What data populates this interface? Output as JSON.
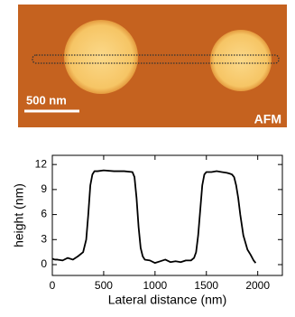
{
  "image": {
    "scale_label": "500 nm",
    "label": "AFM"
  },
  "chart_data": {
    "type": "line",
    "x": [
      0,
      25,
      50,
      100,
      150,
      200,
      250,
      300,
      330,
      350,
      370,
      390,
      410,
      440,
      500,
      600,
      700,
      780,
      800,
      820,
      840,
      860,
      880,
      900,
      950,
      1000,
      1050,
      1100,
      1150,
      1200,
      1250,
      1300,
      1350,
      1380,
      1400,
      1420,
      1440,
      1460,
      1480,
      1500,
      1550,
      1600,
      1650,
      1700,
      1730,
      1750,
      1770,
      1790,
      1810,
      1830,
      1860,
      1900,
      1930,
      1960,
      1980
    ],
    "values": [
      0.7,
      0.6,
      0.6,
      0.5,
      0.8,
      0.6,
      1.0,
      1.5,
      3,
      6,
      9.5,
      10.8,
      11.2,
      11.2,
      11.3,
      11.2,
      11.2,
      11.1,
      10.5,
      8,
      4.5,
      2,
      1,
      0.6,
      0.5,
      0.2,
      0.4,
      0.6,
      0.3,
      0.4,
      0.3,
      0.5,
      0.5,
      0.8,
      1.5,
      3.5,
      6.5,
      9.5,
      10.8,
      11.1,
      11.1,
      11.2,
      11.1,
      11.0,
      10.9,
      10.8,
      10.5,
      9.5,
      8,
      6,
      3.5,
      1.8,
      1.2,
      0.5,
      0.2
    ],
    "color": "#000000",
    "xlabel": "Lateral distance (nm)",
    "ylabel": "height (nm)",
    "xlim": [
      0,
      2240
    ],
    "ylim": [
      -1.3,
      13.1
    ],
    "xticks": [
      0,
      500,
      1000,
      1500,
      2000
    ],
    "yticks": [
      0,
      3,
      6,
      9,
      12
    ]
  }
}
